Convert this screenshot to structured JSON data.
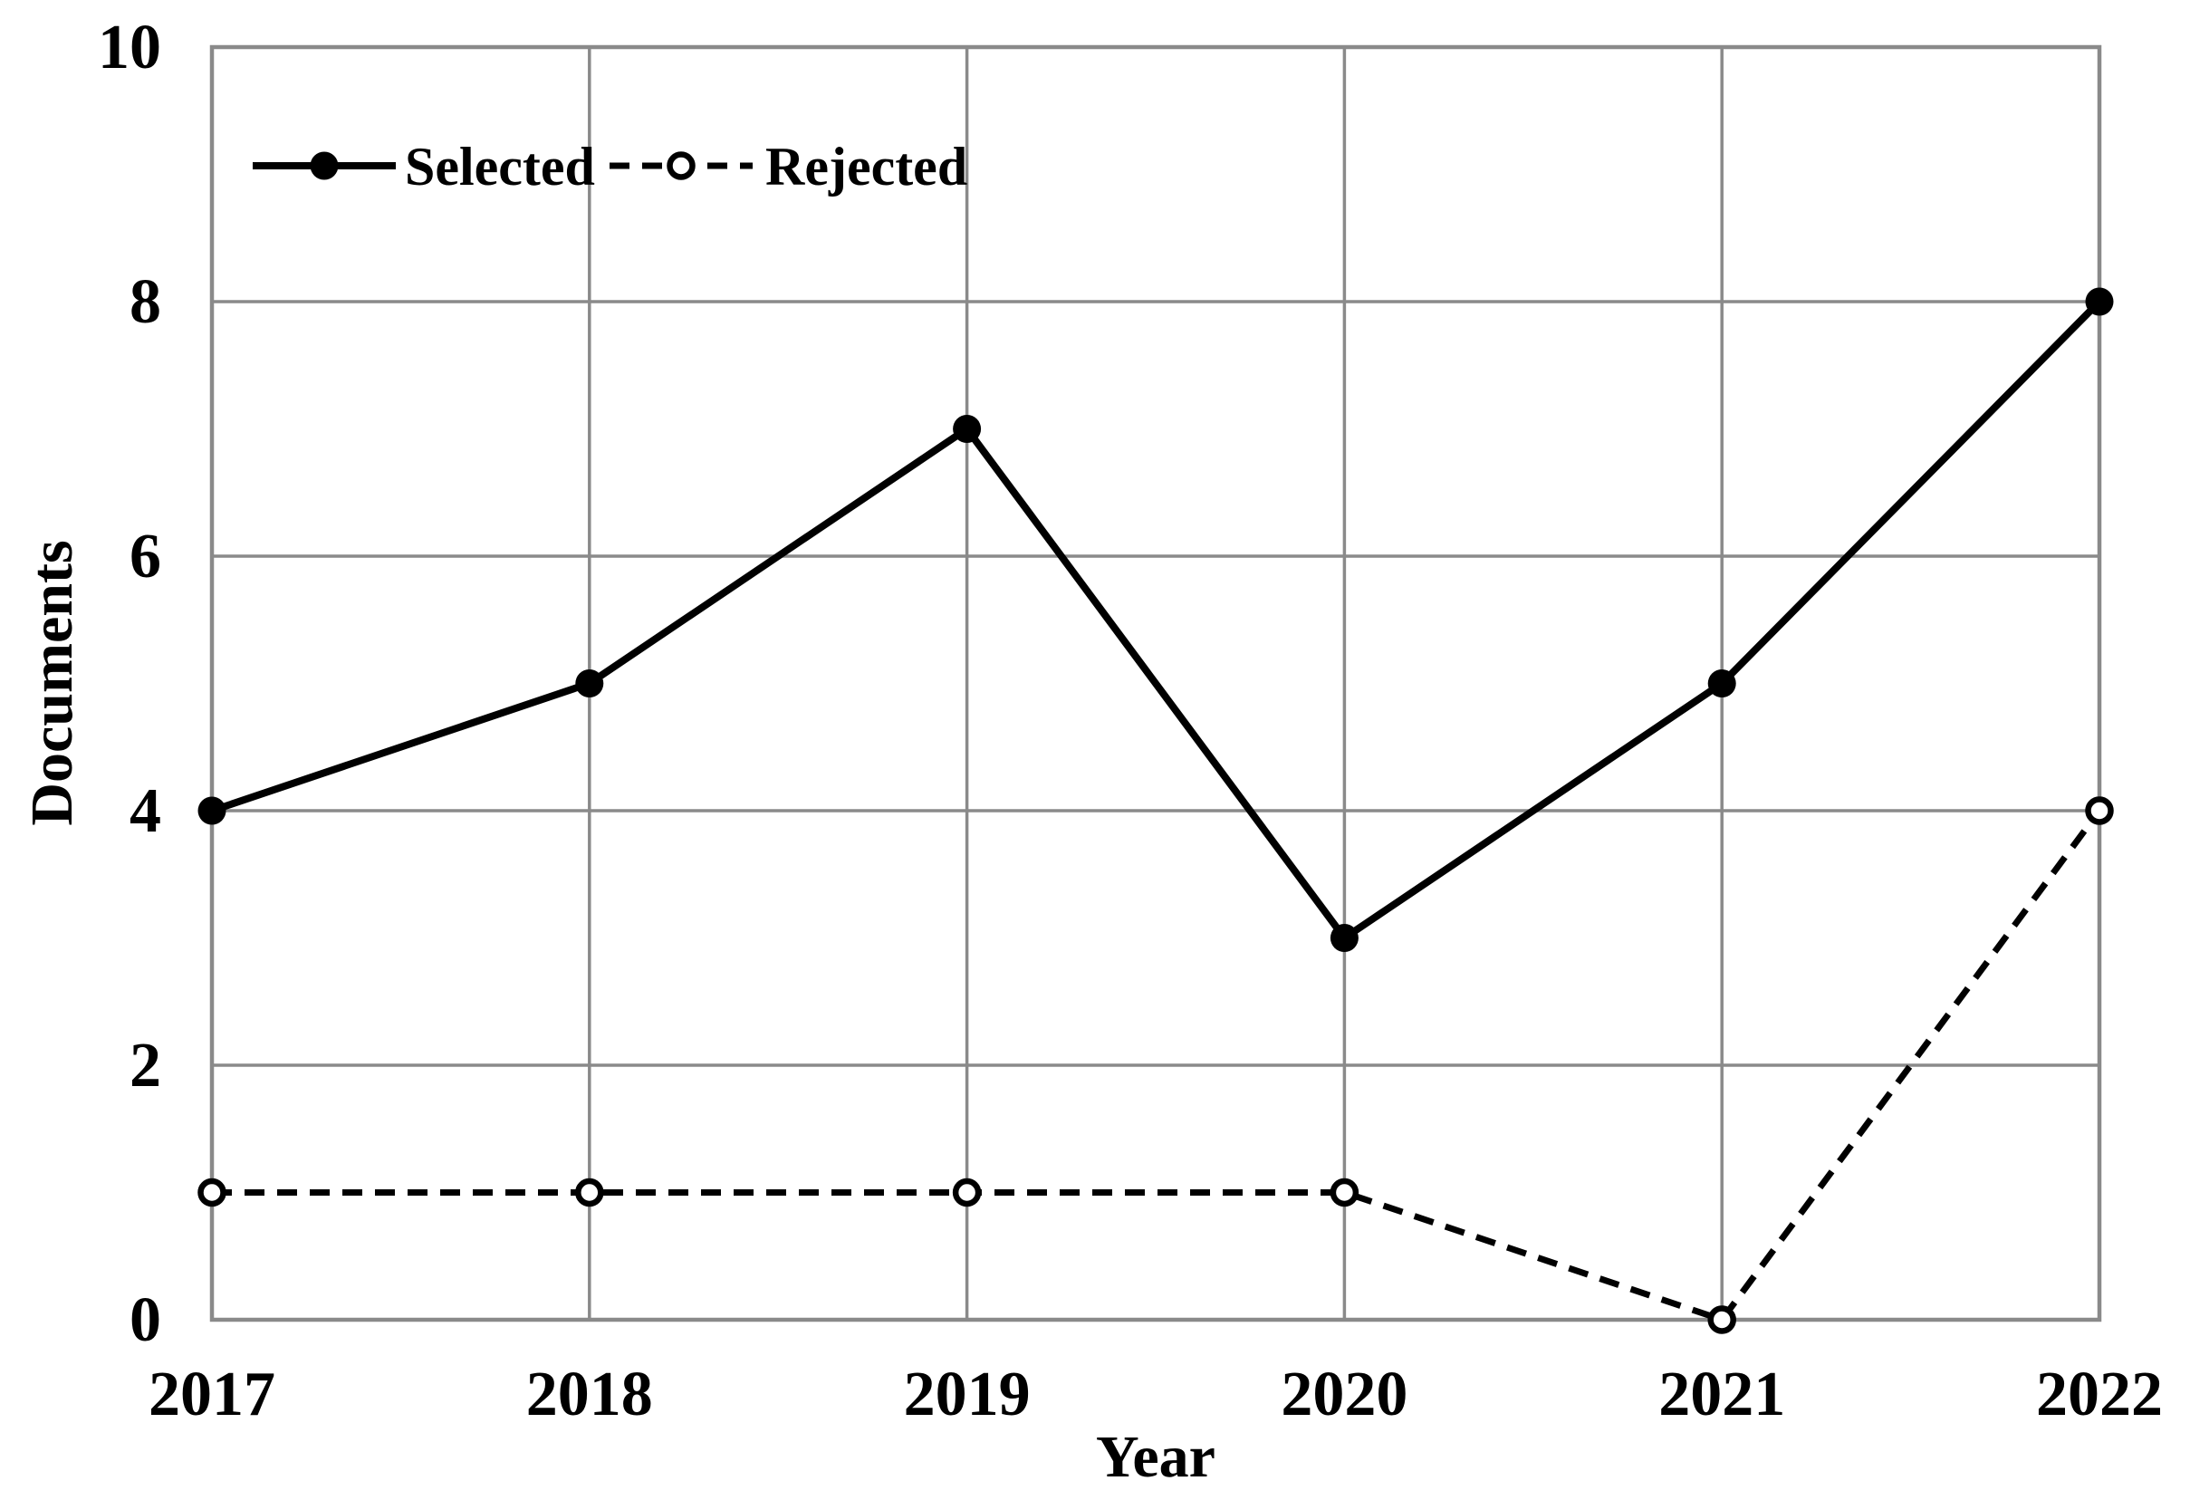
{
  "figure": {
    "background": "#ffffff",
    "text_color": "#000000",
    "grid_color": "#8a8a8a",
    "border_color": "#8a8a8a",
    "series_color": "#000000"
  },
  "chart_data": {
    "type": "line",
    "title": "",
    "xlabel": "Year",
    "ylabel": "Documents",
    "categories": [
      "2017",
      "2018",
      "2019",
      "2020",
      "2021",
      "2022"
    ],
    "y_ticks": [
      0,
      2,
      4,
      6,
      8,
      10
    ],
    "ylim": [
      0,
      10
    ],
    "grid": true,
    "legend_position": "top-left-inside",
    "series": [
      {
        "name": "Selected",
        "values": [
          4,
          5,
          7,
          3,
          5,
          8
        ],
        "line_style": "solid",
        "marker": "filled-circle"
      },
      {
        "name": "Rejected",
        "values": [
          1,
          1,
          1,
          1,
          0,
          4
        ],
        "line_style": "dashed",
        "marker": "open-circle"
      }
    ]
  }
}
